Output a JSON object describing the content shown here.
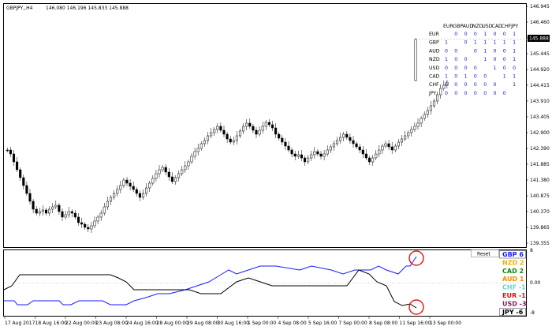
{
  "chart": {
    "symbol_tf": "GBPJPY,,H4",
    "ohlc": "146.080 146.196 145.833 145.888",
    "current_price": "145.888",
    "price_axis": [
      "146.945",
      "146.460",
      "145.975",
      "145.445",
      "144.920",
      "144.415",
      "143.910",
      "143.405",
      "142.900",
      "142.390",
      "141.885",
      "141.380",
      "140.875",
      "140.370",
      "139.865",
      "139.355"
    ],
    "time_axis": [
      "17 Aug 2017",
      "18 Aug 16:00",
      "22 Aug 00:00",
      "23 Aug 08:00",
      "24 Aug 16:00",
      "28 Aug 00:00",
      "29 Aug 08:00",
      "30 Aug 16:00",
      "1 Sep 00:00",
      "4 Sep 08:00",
      "5 Sep 16:00",
      "7 Sep 00:00",
      "8 Sep 08:00",
      "11 Sep 16:00",
      "13 Sep 00:00"
    ]
  },
  "matrix": {
    "headers": [
      "EUR",
      "GBP",
      "AUD",
      "NZD",
      "USD",
      "CAD",
      "CHF",
      "JPY"
    ],
    "rows": [
      {
        "ccy": "EUR",
        "cells": [
          "",
          "0",
          "0",
          "0",
          "1",
          "0",
          "0",
          "1"
        ]
      },
      {
        "ccy": "GBP",
        "cells": [
          "1",
          "",
          "0",
          "1",
          "1",
          "1",
          "1",
          "1"
        ]
      },
      {
        "ccy": "AUD",
        "cells": [
          "0",
          "0",
          "",
          "0",
          "1",
          "0",
          "0",
          "1"
        ]
      },
      {
        "ccy": "NZD",
        "cells": [
          "1",
          "0",
          "0",
          "",
          "1",
          "0",
          "0",
          "1"
        ]
      },
      {
        "ccy": "USD",
        "cells": [
          "0",
          "0",
          "0",
          "0",
          "",
          "1",
          "0",
          "0"
        ]
      },
      {
        "ccy": "CAD",
        "cells": [
          "1",
          "0",
          "1",
          "0",
          "0",
          "",
          "1",
          "1"
        ]
      },
      {
        "ccy": "CHF",
        "cells": [
          "0",
          "0",
          "0",
          "0",
          "0",
          "0",
          "",
          "1"
        ]
      },
      {
        "ccy": "JPY",
        "cells": [
          "0",
          "0",
          "0",
          "0",
          "0",
          "0",
          "0",
          ""
        ]
      }
    ],
    "one_color": "#1515c8",
    "zero_color": "#1515c8"
  },
  "indicator": {
    "reset_label": "Reset",
    "axis": [
      "8",
      "0.00",
      "-8"
    ],
    "strengths": [
      {
        "label": "GBP 6",
        "color": "#1a1aff",
        "bg": "#ffffff",
        "border": true
      },
      {
        "label": "NZD 2",
        "color": "#f0b000"
      },
      {
        "label": "CAD 2",
        "color": "#0a8a0a"
      },
      {
        "label": "AUD 1",
        "color": "#ff8c00"
      },
      {
        "label": "CHF -1",
        "color": "#6ad0d0"
      },
      {
        "label": "EUR -1",
        "color": "#e01010"
      },
      {
        "label": "USD -3",
        "color": "#8b1a5a"
      },
      {
        "label": "JPY -6",
        "color": "#000000",
        "border": true
      }
    ]
  }
}
